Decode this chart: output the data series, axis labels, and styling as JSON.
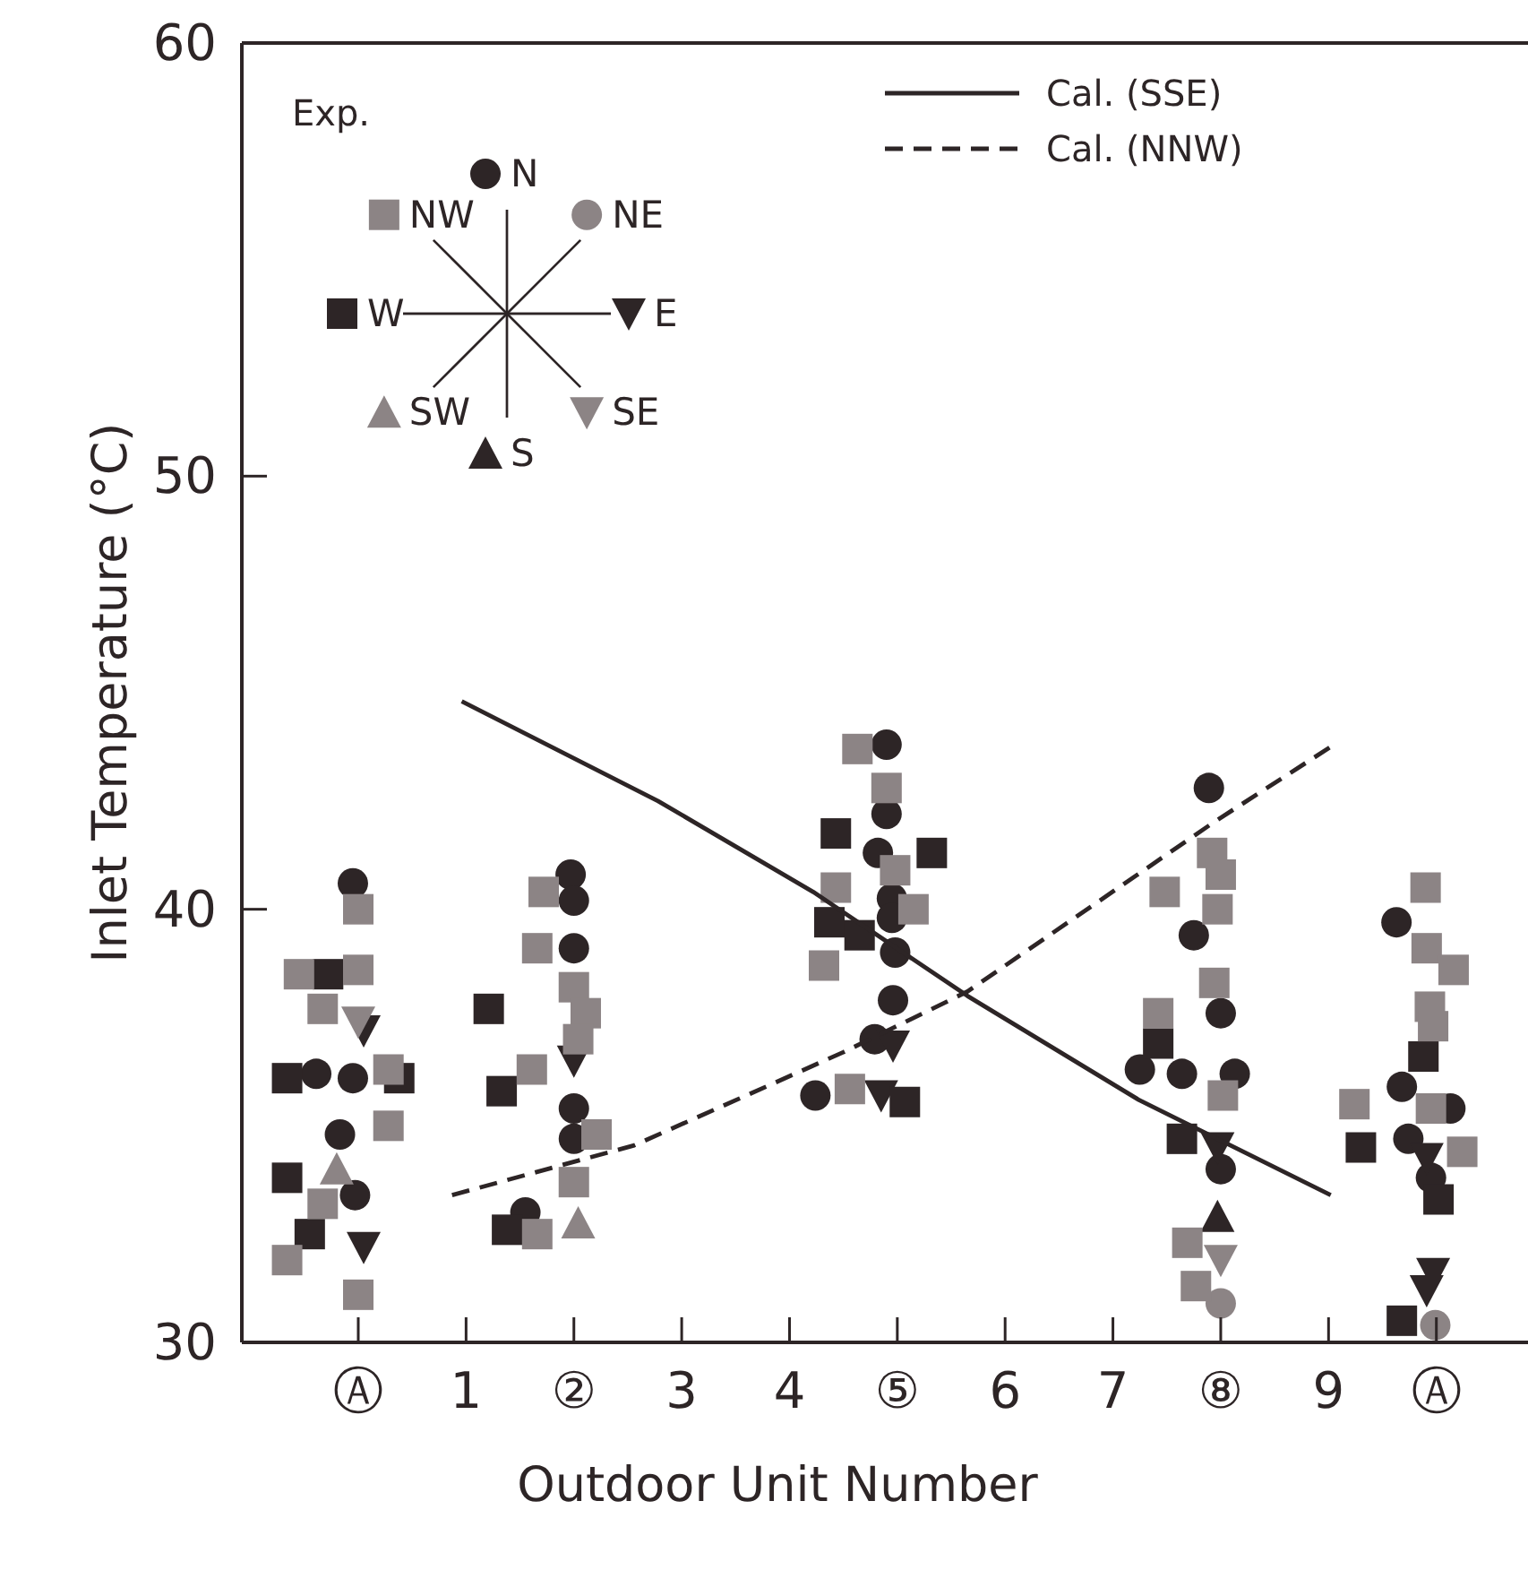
{
  "chart_data": {
    "type": "scatter",
    "xlabel": "Outdoor  Unit  Number",
    "ylabel": "Inlet  Temperature (°C)",
    "legend_title": "Exp.",
    "xlim": [
      -1.08,
      10.85
    ],
    "ylim": [
      30,
      60
    ],
    "xticks": [
      {
        "value": 0,
        "label": "Ⓐ"
      },
      {
        "value": 1,
        "label": "1"
      },
      {
        "value": 2,
        "label": "②"
      },
      {
        "value": 3,
        "label": "3"
      },
      {
        "value": 4,
        "label": "4"
      },
      {
        "value": 5,
        "label": "⑤"
      },
      {
        "value": 6,
        "label": "6"
      },
      {
        "value": 7,
        "label": "7"
      },
      {
        "value": 8,
        "label": "⑧"
      },
      {
        "value": 9,
        "label": "9"
      },
      {
        "value": 10,
        "label": "Ⓐ"
      }
    ],
    "yticks": [
      30,
      40,
      50,
      60
    ],
    "grid": false,
    "legend": "top",
    "series": [
      {
        "name": "N",
        "marker": "circle",
        "color": "#2d2526",
        "x": [
          -0.05,
          -0.39,
          -0.05,
          -0.17,
          -0.03,
          1.97,
          2.0,
          2.0,
          2.0,
          2.0,
          1.55,
          4.9,
          4.9,
          4.82,
          4.95,
          4.95,
          4.98,
          4.96,
          4.79,
          4.24,
          7.89,
          7.75,
          8.0,
          7.25,
          7.64,
          8.13,
          8.0,
          9.63,
          9.68,
          10.13,
          9.74,
          9.95
        ],
        "values": [
          40.6,
          36.2,
          36.1,
          34.8,
          33.4,
          40.8,
          40.2,
          39.1,
          35.4,
          34.7,
          33.0,
          43.8,
          42.2,
          41.3,
          40.25,
          39.8,
          39.0,
          37.9,
          37.0,
          35.7,
          42.8,
          39.4,
          37.6,
          36.3,
          36.2,
          36.2,
          34.0,
          39.7,
          35.9,
          35.4,
          34.7,
          33.8
        ]
      },
      {
        "name": "NE",
        "marker": "circle",
        "color": "#8c8485",
        "x": [
          8.0,
          9.99
        ],
        "values": [
          30.9,
          30.4
        ]
      },
      {
        "name": "E",
        "marker": "triangle-down",
        "color": "#2d2526",
        "x": [
          0.05,
          0.05,
          2.0,
          4.96,
          4.85,
          7.97,
          9.91,
          9.97,
          9.91
        ],
        "values": [
          37.2,
          32.2,
          36.5,
          36.85,
          35.7,
          34.5,
          34.25,
          31.6,
          31.2
        ]
      },
      {
        "name": "SE",
        "marker": "triangle-down",
        "color": "#8c8485",
        "x": [
          0.0,
          8.0
        ],
        "values": [
          37.4,
          31.9
        ]
      },
      {
        "name": "S",
        "marker": "triangle",
        "color": "#2d2526",
        "x": [
          7.97
        ],
        "values": [
          32.9
        ]
      },
      {
        "name": "SW",
        "marker": "triangle",
        "color": "#8c8485",
        "x": [
          -0.2,
          2.04
        ],
        "values": [
          34.0,
          32.75
        ]
      },
      {
        "name": "W",
        "marker": "square",
        "color": "#2d2526",
        "x": [
          -0.28,
          -0.66,
          0.38,
          -0.66,
          -0.45,
          1.21,
          1.33,
          1.38,
          4.43,
          5.32,
          4.37,
          4.65,
          5.07,
          7.42,
          7.64,
          9.88,
          9.3,
          10.02,
          9.68
        ],
        "values": [
          38.5,
          36.1,
          36.1,
          33.8,
          32.5,
          37.7,
          35.8,
          32.6,
          41.75,
          41.3,
          39.7,
          39.4,
          35.55,
          36.9,
          34.7,
          36.6,
          34.5,
          33.3,
          30.5
        ]
      },
      {
        "name": "NW",
        "marker": "square",
        "color": "#8c8485",
        "x": [
          0.0,
          -0.55,
          0.0,
          -0.33,
          0.28,
          0.28,
          -0.33,
          -0.66,
          0.0,
          1.72,
          1.66,
          2.0,
          2.11,
          2.04,
          1.61,
          2.21,
          2.0,
          1.66,
          4.63,
          4.9,
          4.98,
          4.43,
          5.15,
          4.32,
          4.56,
          7.92,
          7.48,
          8.0,
          7.97,
          7.94,
          7.42,
          8.02,
          7.69,
          7.77,
          9.9,
          9.91,
          10.16,
          9.94,
          9.97,
          9.24,
          9.95,
          10.24
        ],
        "values": [
          40.0,
          38.5,
          38.6,
          37.7,
          36.3,
          35.0,
          33.2,
          31.9,
          31.1,
          40.4,
          39.1,
          38.2,
          37.6,
          37.0,
          36.3,
          34.8,
          33.7,
          32.5,
          43.7,
          42.8,
          40.9,
          40.5,
          40.0,
          38.7,
          35.85,
          41.3,
          40.4,
          40.8,
          40.0,
          38.3,
          37.6,
          35.7,
          32.3,
          31.3,
          40.5,
          39.1,
          38.6,
          37.75,
          37.3,
          35.5,
          35.4,
          34.4
        ]
      },
      {
        "name": "Cal. (SSE)",
        "type": "line",
        "line_style": "solid",
        "color": "#2d2526",
        "x": [
          0.96,
          2.78,
          4.22,
          5.65,
          7.24,
          9.02
        ],
        "values": [
          44.8,
          42.5,
          40.4,
          38.0,
          35.6,
          33.4
        ]
      },
      {
        "name": "Cal. (NNW)",
        "type": "line",
        "line_style": "dashed",
        "color": "#2d2526",
        "x": [
          0.87,
          2.56,
          4.5,
          5.65,
          7.93,
          9.02
        ],
        "values": [
          33.4,
          34.55,
          36.7,
          38.1,
          42.0,
          43.75
        ]
      }
    ]
  }
}
